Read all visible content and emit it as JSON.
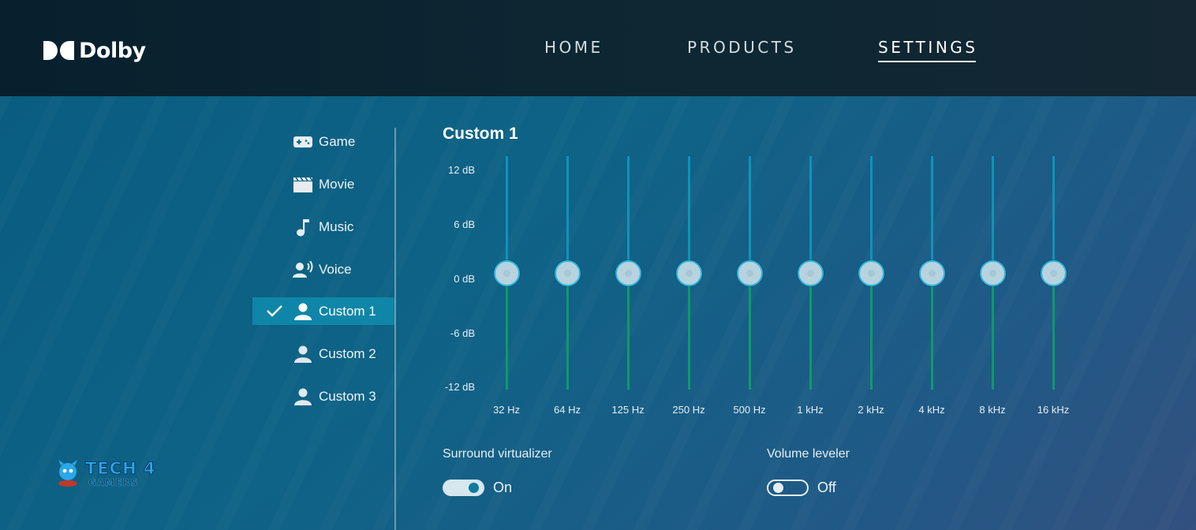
{
  "brand": {
    "name": "Dolby"
  },
  "nav": {
    "items": [
      {
        "label": "HOME"
      },
      {
        "label": "PRODUCTS"
      },
      {
        "label": "SETTINGS",
        "active": true
      }
    ]
  },
  "sidebar": {
    "items": [
      {
        "label": "Game",
        "icon": "gamepad-icon"
      },
      {
        "label": "Movie",
        "icon": "clapperboard-icon"
      },
      {
        "label": "Music",
        "icon": "music-note-icon"
      },
      {
        "label": "Voice",
        "icon": "voice-icon"
      },
      {
        "label": "Custom 1",
        "icon": "user-icon",
        "selected": true
      },
      {
        "label": "Custom 2",
        "icon": "user-icon"
      },
      {
        "label": "Custom 3",
        "icon": "user-icon"
      }
    ]
  },
  "equalizer": {
    "title": "Custom 1",
    "db_labels": [
      "12 dB",
      "6 dB",
      "0 dB",
      "-6 dB",
      "-12 dB"
    ],
    "bands": [
      {
        "freq": "32 Hz",
        "gain_db": 0
      },
      {
        "freq": "64 Hz",
        "gain_db": 0
      },
      {
        "freq": "125 Hz",
        "gain_db": 0
      },
      {
        "freq": "250 Hz",
        "gain_db": 0
      },
      {
        "freq": "500 Hz",
        "gain_db": 0
      },
      {
        "freq": "1 kHz",
        "gain_db": 0
      },
      {
        "freq": "2 kHz",
        "gain_db": 0
      },
      {
        "freq": "4 kHz",
        "gain_db": 0
      },
      {
        "freq": "8 kHz",
        "gain_db": 0
      },
      {
        "freq": "16 kHz",
        "gain_db": 0
      }
    ],
    "range_db": [
      -12,
      12
    ]
  },
  "options": {
    "surround": {
      "label": "Surround virtualizer",
      "state": "On"
    },
    "leveler": {
      "label": "Volume leveler",
      "state": "Off"
    }
  },
  "watermark": {
    "line1": "TECH 4",
    "line2": "GAMERS"
  },
  "colors": {
    "accent": "#0f86a8",
    "track_top": "#0f93b8",
    "track_bottom": "#0e9a6a"
  }
}
